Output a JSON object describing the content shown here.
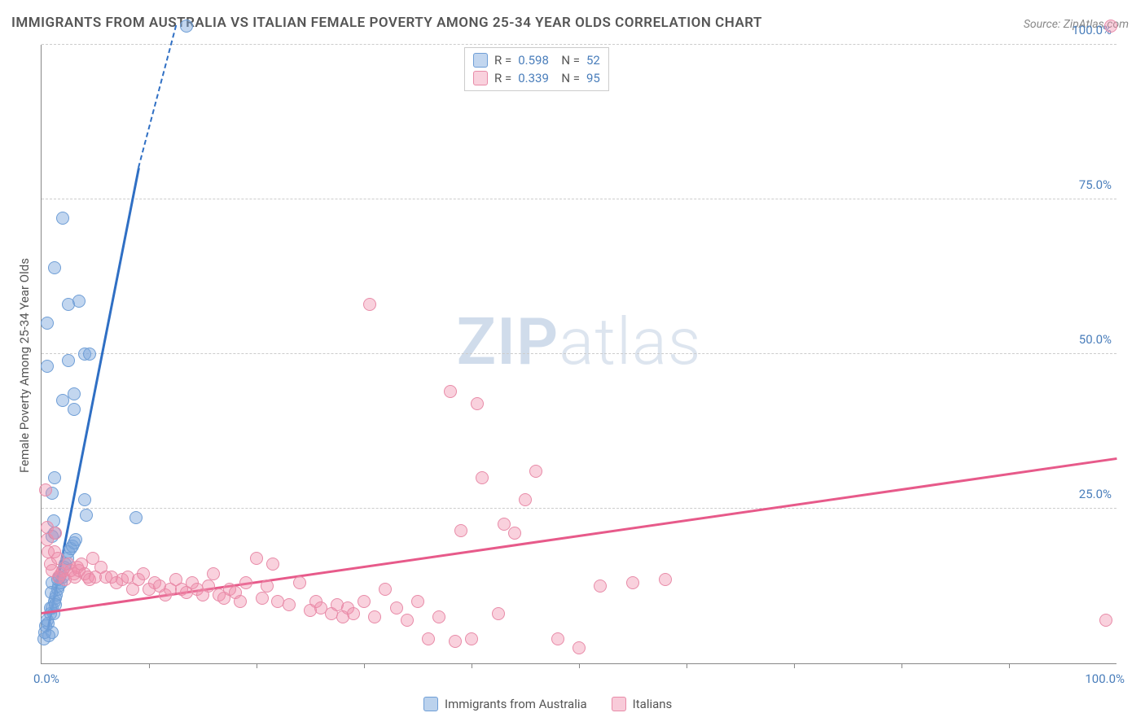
{
  "title": "IMMIGRANTS FROM AUSTRALIA VS ITALIAN FEMALE POVERTY AMONG 25-34 YEAR OLDS CORRELATION CHART",
  "source_label": "Source: ZipAtlas.com",
  "ylabel": "Female Poverty Among 25-34 Year Olds",
  "watermark_zip": "ZIP",
  "watermark_atlas": "atlas",
  "chart": {
    "type": "scatter",
    "xlim": [
      0,
      100
    ],
    "ylim": [
      0,
      100
    ],
    "x_start_label": "0.0%",
    "x_end_label": "100.0%",
    "ytick_labels": [
      "25.0%",
      "50.0%",
      "75.0%",
      "100.0%"
    ],
    "ytick_values": [
      25,
      50,
      75,
      100
    ],
    "xtick_marks": [
      10,
      20,
      30,
      40,
      50,
      60,
      70,
      80,
      90
    ],
    "grid_color": "#cccccc",
    "axis_color": "#888888",
    "background_color": "#ffffff",
    "point_radius": 8,
    "series": [
      {
        "name": "Immigrants from Australia",
        "color_fill": "rgba(120,165,220,0.45)",
        "color_stroke": "#6f9ed6",
        "trend_color": "#2f6fc4",
        "R": "0.598",
        "N": "52",
        "trend": {
          "x1": 0.5,
          "y1": 5,
          "x2_solid": 9,
          "y2_solid": 80,
          "x2_dash": 12.5,
          "y2_dash": 103
        },
        "points": [
          [
            0.2,
            4
          ],
          [
            0.3,
            5
          ],
          [
            0.4,
            6
          ],
          [
            0.5,
            7
          ],
          [
            0.6,
            6.5
          ],
          [
            0.8,
            8
          ],
          [
            1.0,
            9
          ],
          [
            1.2,
            10
          ],
          [
            1.3,
            10.5
          ],
          [
            1.4,
            11
          ],
          [
            1.5,
            12
          ],
          [
            1.6,
            12.5
          ],
          [
            1.8,
            13
          ],
          [
            2.0,
            14
          ],
          [
            2.1,
            15.5
          ],
          [
            2.2,
            16
          ],
          [
            2.4,
            17
          ],
          [
            2.5,
            18
          ],
          [
            2.7,
            18.5
          ],
          [
            2.9,
            19
          ],
          [
            3.0,
            19.5
          ],
          [
            3.2,
            20
          ],
          [
            1.0,
            20.5
          ],
          [
            1.2,
            21
          ],
          [
            1.1,
            23
          ],
          [
            4.2,
            24
          ],
          [
            8.8,
            23.5
          ],
          [
            4.0,
            26.5
          ],
          [
            1.0,
            27.5
          ],
          [
            1.2,
            30
          ],
          [
            3.0,
            41
          ],
          [
            2.0,
            42.5
          ],
          [
            3.0,
            43.5
          ],
          [
            0.5,
            48
          ],
          [
            2.5,
            49
          ],
          [
            4.0,
            50
          ],
          [
            4.5,
            50
          ],
          [
            0.5,
            55
          ],
          [
            2.5,
            58
          ],
          [
            3.5,
            58.5
          ],
          [
            1.2,
            64
          ],
          [
            2.0,
            72
          ],
          [
            13.5,
            103
          ],
          [
            1.0,
            13
          ],
          [
            1.5,
            13.5
          ],
          [
            1.7,
            14
          ],
          [
            0.9,
            11.5
          ],
          [
            0.8,
            9
          ],
          [
            1.1,
            8
          ],
          [
            1.3,
            9.5
          ],
          [
            1.0,
            5
          ],
          [
            0.7,
            4.5
          ]
        ]
      },
      {
        "name": "Italians",
        "color_fill": "rgba(240,140,170,0.4)",
        "color_stroke": "#e88ba8",
        "trend_color": "#e75a8a",
        "R": "0.339",
        "N": "95",
        "trend": {
          "x1": 0,
          "y1": 8,
          "x2_solid": 100,
          "y2_solid": 33
        },
        "points": [
          [
            0.4,
            28
          ],
          [
            0.5,
            22
          ],
          [
            0.5,
            20
          ],
          [
            0.6,
            18
          ],
          [
            0.8,
            16
          ],
          [
            1.0,
            15
          ],
          [
            1.2,
            18
          ],
          [
            1.3,
            21
          ],
          [
            1.5,
            17
          ],
          [
            1.6,
            14
          ],
          [
            1.8,
            14.5
          ],
          [
            2.0,
            15
          ],
          [
            2.2,
            13.5
          ],
          [
            2.5,
            16
          ],
          [
            2.7,
            15
          ],
          [
            3.0,
            14.5
          ],
          [
            3.1,
            14
          ],
          [
            3.3,
            15.5
          ],
          [
            3.5,
            15
          ],
          [
            3.7,
            16
          ],
          [
            4.0,
            14.5
          ],
          [
            4.3,
            14
          ],
          [
            4.5,
            13.5
          ],
          [
            4.8,
            17
          ],
          [
            5.0,
            14
          ],
          [
            5.5,
            15.5
          ],
          [
            6.0,
            14
          ],
          [
            6.5,
            14
          ],
          [
            7.0,
            13
          ],
          [
            7.5,
            13.5
          ],
          [
            8.0,
            14
          ],
          [
            8.5,
            12
          ],
          [
            9.0,
            13.5
          ],
          [
            9.5,
            14.5
          ],
          [
            10.0,
            12
          ],
          [
            10.5,
            13
          ],
          [
            11.0,
            12.5
          ],
          [
            11.5,
            11
          ],
          [
            12.0,
            12
          ],
          [
            12.5,
            13.5
          ],
          [
            13.0,
            12
          ],
          [
            13.5,
            11.5
          ],
          [
            14.0,
            13
          ],
          [
            14.5,
            12
          ],
          [
            15.0,
            11
          ],
          [
            15.5,
            12.5
          ],
          [
            16.0,
            14.5
          ],
          [
            16.5,
            11
          ],
          [
            17.0,
            10.5
          ],
          [
            17.5,
            12
          ],
          [
            18.0,
            11.5
          ],
          [
            18.5,
            10
          ],
          [
            19.0,
            13
          ],
          [
            20.0,
            17
          ],
          [
            20.5,
            10.5
          ],
          [
            21.0,
            12.5
          ],
          [
            21.5,
            16
          ],
          [
            22.0,
            10
          ],
          [
            23.0,
            9.5
          ],
          [
            24.0,
            13
          ],
          [
            25.0,
            8.5
          ],
          [
            25.5,
            10
          ],
          [
            26.0,
            9
          ],
          [
            27.0,
            8
          ],
          [
            27.5,
            9.5
          ],
          [
            28.0,
            7.5
          ],
          [
            28.5,
            9
          ],
          [
            29.0,
            8
          ],
          [
            30.0,
            10
          ],
          [
            31.0,
            7.5
          ],
          [
            32.0,
            12
          ],
          [
            33.0,
            9
          ],
          [
            34.0,
            7
          ],
          [
            35.0,
            10
          ],
          [
            36.0,
            4
          ],
          [
            37.0,
            7.5
          ],
          [
            38.5,
            3.5
          ],
          [
            39.0,
            21.5
          ],
          [
            40.0,
            4
          ],
          [
            41.0,
            30
          ],
          [
            42.5,
            8
          ],
          [
            43.0,
            22.5
          ],
          [
            44.0,
            21
          ],
          [
            45.0,
            26.5
          ],
          [
            46.0,
            31
          ],
          [
            48.0,
            4
          ],
          [
            50.0,
            2.5
          ],
          [
            52.0,
            12.5
          ],
          [
            55.0,
            13
          ],
          [
            30.5,
            58
          ],
          [
            40.5,
            42
          ],
          [
            38.0,
            44
          ],
          [
            99.5,
            103
          ],
          [
            99.0,
            7
          ],
          [
            58.0,
            13.5
          ]
        ]
      }
    ]
  },
  "legend_bottom": [
    {
      "label": "Immigrants from Australia",
      "fill": "rgba(120,165,220,0.5)",
      "stroke": "#6f9ed6"
    },
    {
      "label": "Italians",
      "fill": "rgba(240,140,170,0.45)",
      "stroke": "#e88ba8"
    }
  ]
}
